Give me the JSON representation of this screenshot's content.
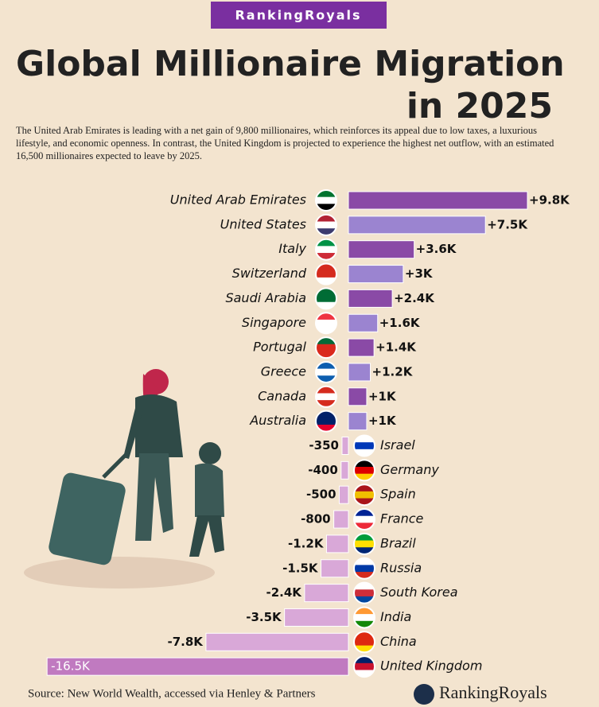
{
  "chart_data": {
    "type": "bar",
    "brand": "RankingRoyals",
    "title": "Global Millionaire Migration in 2025",
    "subtitle": "The United Arab Emirates is leading with a net gain of 9,800 millionaires, which reinforces its appeal due to low taxes, a luxurious lifestyle, and economic openness. In contrast, the United Kingdom is projected to experience the highest net outflow, with an estimated 16,500 millionaires expected to leave by 2025.",
    "categories": [
      "United Arab Emirates",
      "United States",
      "Italy",
      "Switzerland",
      "Saudi Arabia",
      "Singapore",
      "Portugal",
      "Greece",
      "Canada",
      "Australia",
      "Israel",
      "Germany",
      "Spain",
      "France",
      "Brazil",
      "Russia",
      "South Korea",
      "India",
      "China",
      "United Kingdom"
    ],
    "values": [
      9800,
      7500,
      3600,
      3000,
      2400,
      1600,
      1400,
      1200,
      1000,
      1000,
      -350,
      -400,
      -500,
      -800,
      -1200,
      -1500,
      -2400,
      -3500,
      -7800,
      -16500
    ],
    "value_labels": [
      "+9.8K",
      "+7.5K",
      "+3.6K",
      "+3K",
      "+2.4K",
      "+1.6K",
      "+1.4K",
      "+1.2K",
      "+1K",
      "+1K",
      "-350",
      "-400",
      "-500",
      "-800",
      "-1.2K",
      "-1.5K",
      "-2.4K",
      "-3.5K",
      "-7.8K",
      "-16.5K"
    ],
    "colors": [
      "#8a4aa6",
      "#9b84d0",
      "#8a4aa6",
      "#9b84d0",
      "#8a4aa6",
      "#9b84d0",
      "#8a4aa6",
      "#9b84d0",
      "#8a4aa6",
      "#9b84d0",
      "#d9a8d8",
      "#d9a8d8",
      "#d9a8d8",
      "#d9a8d8",
      "#d9a8d8",
      "#d9a8d8",
      "#d9a8d8",
      "#d9a8d8",
      "#d9a8d8",
      "#c07ac0"
    ],
    "source": "Source: New World Wealth, accessed via Henley & Partners"
  }
}
